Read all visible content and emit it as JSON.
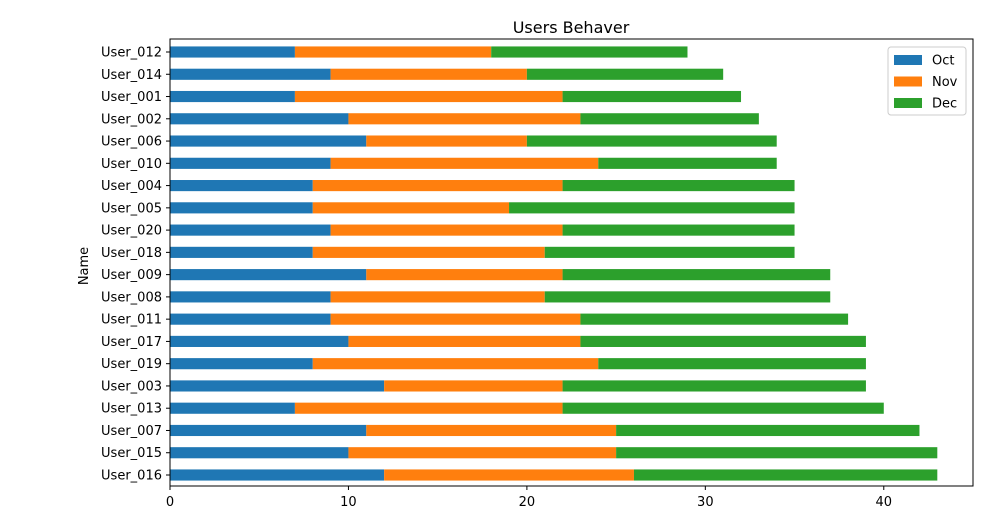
{
  "chart_data": {
    "type": "bar",
    "orientation": "horizontal",
    "stacked": true,
    "title": "Users Behaver",
    "xlabel": "",
    "ylabel": "Name",
    "xlim": [
      0,
      45
    ],
    "xticks": [
      0,
      10,
      20,
      30,
      40
    ],
    "grid": false,
    "legend_position": "top-right",
    "categories": [
      "User_016",
      "User_015",
      "User_007",
      "User_013",
      "User_003",
      "User_019",
      "User_017",
      "User_011",
      "User_008",
      "User_009",
      "User_018",
      "User_020",
      "User_005",
      "User_004",
      "User_010",
      "User_006",
      "User_002",
      "User_001",
      "User_014",
      "User_012"
    ],
    "series": [
      {
        "name": "Oct",
        "color": "#1f77b4",
        "values": [
          12,
          10,
          11,
          7,
          12,
          8,
          10,
          9,
          9,
          11,
          8,
          9,
          8,
          8,
          9,
          11,
          10,
          7,
          9,
          7
        ]
      },
      {
        "name": "Nov",
        "color": "#ff7f0e",
        "values": [
          14,
          15,
          14,
          15,
          10,
          16,
          13,
          14,
          12,
          11,
          13,
          13,
          11,
          14,
          15,
          9,
          13,
          15,
          11,
          11
        ]
      },
      {
        "name": "Dec",
        "color": "#2ca02c",
        "values": [
          17,
          18,
          17,
          18,
          17,
          15,
          16,
          15,
          16,
          15,
          14,
          13,
          16,
          13,
          10,
          14,
          10,
          10,
          11,
          11
        ]
      }
    ]
  }
}
